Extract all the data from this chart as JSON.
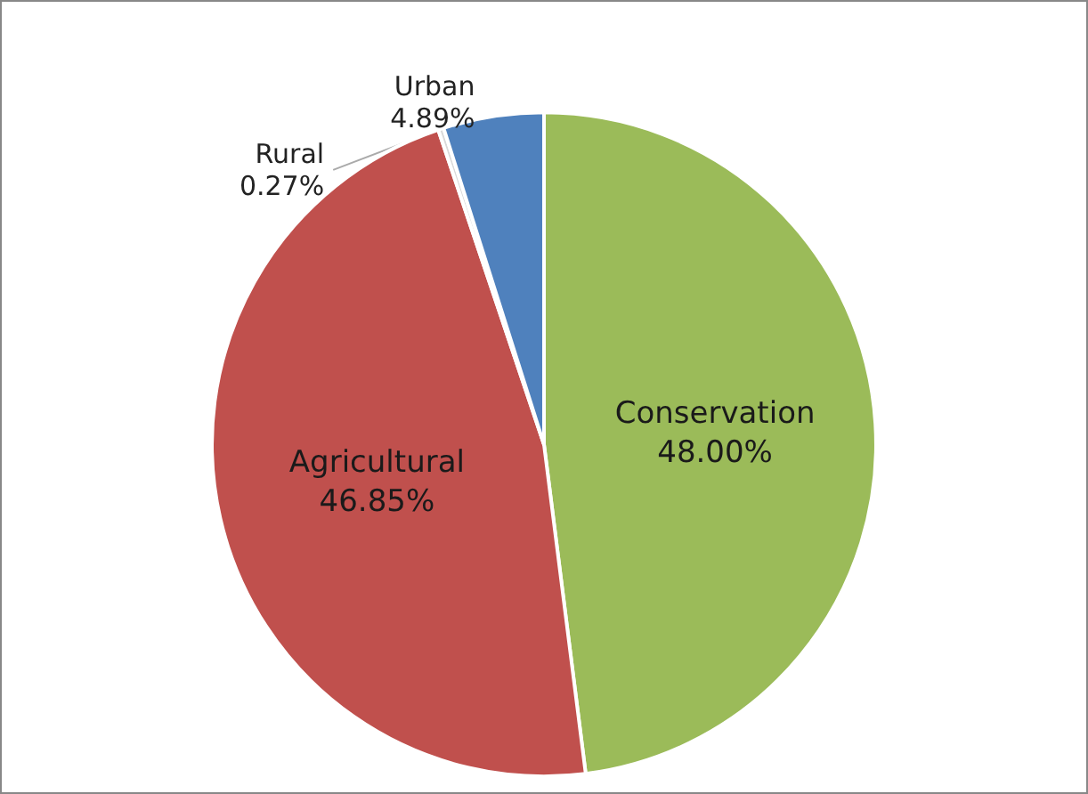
{
  "chart_data": {
    "type": "pie",
    "categories": [
      "Conservation",
      "Agricultural",
      "Rural",
      "Urban"
    ],
    "values": [
      48.0,
      46.85,
      0.27,
      4.89
    ],
    "value_labels": [
      "48.00%",
      "46.85%",
      "0.27%",
      "4.89%"
    ],
    "colors": [
      "#9bbb59",
      "#c0504d",
      "#d9d9d9",
      "#4f81bd"
    ],
    "legend": false
  }
}
